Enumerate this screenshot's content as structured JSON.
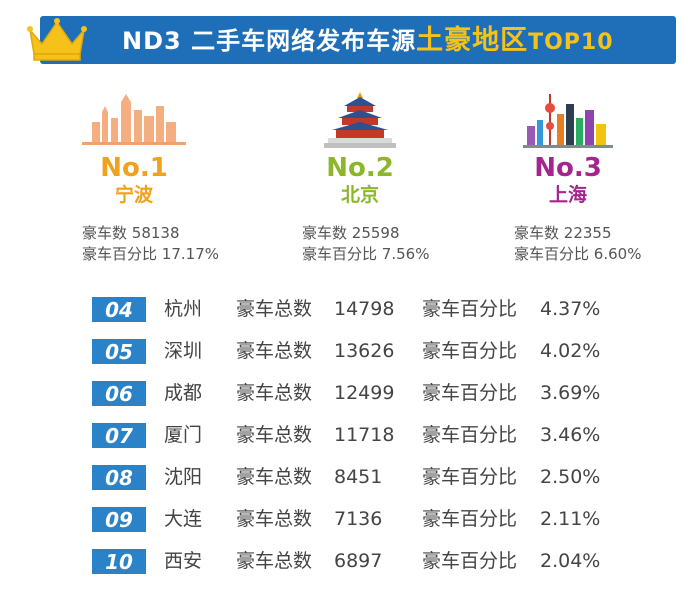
{
  "header": {
    "prefix": "ND3",
    "title_mid": "二手车网络发布车源",
    "title_highlight": "土豪地区",
    "title_tail": "TOP10"
  },
  "top3": [
    {
      "rank": "No.1",
      "city": "宁波",
      "count_label": "豪车数",
      "count": "58138",
      "pct_label": "豪车百分比",
      "pct": "17.17%",
      "color": "#f0a21c"
    },
    {
      "rank": "No.2",
      "city": "北京",
      "count_label": "豪车数",
      "count": "25598",
      "pct_label": "豪车百分比",
      "pct": "7.56%",
      "color": "#8cb72a"
    },
    {
      "rank": "No.3",
      "city": "上海",
      "count_label": "豪车数",
      "count": "22355",
      "pct_label": "豪车百分比",
      "pct": "6.60%",
      "color": "#a3258d"
    }
  ],
  "list": [
    {
      "rank": "04",
      "city": "杭州",
      "total_label": "豪车总数",
      "total": "14798",
      "pct_label": "豪车百分比",
      "pct": "4.37%"
    },
    {
      "rank": "05",
      "city": "深圳",
      "total_label": "豪车总数",
      "total": "13626",
      "pct_label": "豪车百分比",
      "pct": "4.02%"
    },
    {
      "rank": "06",
      "city": "成都",
      "total_label": "豪车总数",
      "total": "12499",
      "pct_label": "豪车百分比",
      "pct": "3.69%"
    },
    {
      "rank": "07",
      "city": "厦门",
      "total_label": "豪车总数",
      "total": "11718",
      "pct_label": "豪车百分比",
      "pct": "3.46%"
    },
    {
      "rank": "08",
      "city": "沈阳",
      "total_label": "豪车总数",
      "total": "8451",
      "pct_label": "豪车百分比",
      "pct": "2.50%"
    },
    {
      "rank": "09",
      "city": "大连",
      "total_label": "豪车总数",
      "total": "7136",
      "pct_label": "豪车百分比",
      "pct": "2.11%"
    },
    {
      "rank": "10",
      "city": "西安",
      "total_label": "豪车总数",
      "total": "6897",
      "pct_label": "豪车百分比",
      "pct": "2.04%"
    }
  ],
  "colors": {
    "banner": "#1e6fb8",
    "highlight": "#f6c21a",
    "badge": "#2a82c8",
    "crown": "#f6c21a"
  },
  "icons": {
    "banner": "crown-icon",
    "no1": "ningbo-skyline-icon",
    "no2": "temple-of-heaven-icon",
    "no3": "shanghai-skyline-icon"
  }
}
